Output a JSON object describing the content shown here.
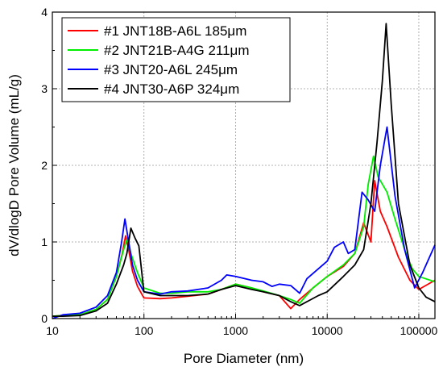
{
  "chart_data": {
    "type": "line",
    "xlabel": "Pore Diameter  (nm)",
    "ylabel": "dV/dlogD Pore Volume  (mL/g)",
    "xscale": "log",
    "xlim": [
      10,
      150000
    ],
    "ylim": [
      0,
      4
    ],
    "x_ticks": [
      {
        "value": 10,
        "label": "10"
      },
      {
        "value": 100,
        "label": "100"
      },
      {
        "value": 1000,
        "label": "1000"
      },
      {
        "value": 10000,
        "label": "10000"
      },
      {
        "value": 100000,
        "label": "100000"
      }
    ],
    "y_ticks": [
      {
        "value": 0,
        "label": "0"
      },
      {
        "value": 1,
        "label": "1"
      },
      {
        "value": 2,
        "label": "2"
      },
      {
        "value": 3,
        "label": "3"
      },
      {
        "value": 4,
        "label": "4"
      }
    ],
    "grid": "dotted",
    "legend_position": "top-left",
    "series": [
      {
        "name": "#1 JNT18B-A6L 185μm",
        "color": "#ff0000",
        "points": [
          [
            10,
            0.03
          ],
          [
            13,
            0.04
          ],
          [
            20,
            0.05
          ],
          [
            30,
            0.12
          ],
          [
            40,
            0.25
          ],
          [
            50,
            0.55
          ],
          [
            58,
            0.85
          ],
          [
            63,
            1.08
          ],
          [
            68,
            0.9
          ],
          [
            75,
            0.62
          ],
          [
            85,
            0.42
          ],
          [
            100,
            0.27
          ],
          [
            150,
            0.26
          ],
          [
            200,
            0.27
          ],
          [
            300,
            0.29
          ],
          [
            500,
            0.32
          ],
          [
            700,
            0.38
          ],
          [
            1000,
            0.45
          ],
          [
            1500,
            0.4
          ],
          [
            2000,
            0.35
          ],
          [
            3000,
            0.3
          ],
          [
            4000,
            0.13
          ],
          [
            5000,
            0.25
          ],
          [
            7000,
            0.4
          ],
          [
            10000,
            0.55
          ],
          [
            15000,
            0.68
          ],
          [
            20000,
            0.85
          ],
          [
            25000,
            1.25
          ],
          [
            30000,
            1.0
          ],
          [
            33000,
            1.8
          ],
          [
            38000,
            1.4
          ],
          [
            45000,
            1.2
          ],
          [
            60000,
            0.8
          ],
          [
            80000,
            0.5
          ],
          [
            100000,
            0.38
          ],
          [
            150000,
            0.5
          ]
        ]
      },
      {
        "name": "#2 JNT21B-A4G 211μm",
        "color": "#00ee00",
        "points": [
          [
            10,
            0.03
          ],
          [
            13,
            0.04
          ],
          [
            20,
            0.05
          ],
          [
            30,
            0.12
          ],
          [
            40,
            0.25
          ],
          [
            50,
            0.55
          ],
          [
            60,
            0.9
          ],
          [
            66,
            1.05
          ],
          [
            72,
            0.85
          ],
          [
            85,
            0.6
          ],
          [
            100,
            0.4
          ],
          [
            150,
            0.33
          ],
          [
            200,
            0.33
          ],
          [
            300,
            0.35
          ],
          [
            500,
            0.35
          ],
          [
            700,
            0.38
          ],
          [
            1000,
            0.45
          ],
          [
            1500,
            0.4
          ],
          [
            2000,
            0.36
          ],
          [
            3000,
            0.3
          ],
          [
            4000,
            0.25
          ],
          [
            5000,
            0.2
          ],
          [
            7000,
            0.4
          ],
          [
            10000,
            0.55
          ],
          [
            15000,
            0.7
          ],
          [
            20000,
            0.85
          ],
          [
            25000,
            1.2
          ],
          [
            28000,
            1.75
          ],
          [
            32000,
            2.12
          ],
          [
            36000,
            1.85
          ],
          [
            45000,
            1.65
          ],
          [
            55000,
            1.3
          ],
          [
            70000,
            0.9
          ],
          [
            85000,
            0.65
          ],
          [
            100000,
            0.55
          ],
          [
            150000,
            0.48
          ]
        ]
      },
      {
        "name": "#3 JNT20-A6L 245μm",
        "color": "#0000ff",
        "points": [
          [
            10,
            0.0
          ],
          [
            13,
            0.05
          ],
          [
            20,
            0.07
          ],
          [
            30,
            0.15
          ],
          [
            40,
            0.3
          ],
          [
            50,
            0.6
          ],
          [
            57,
            1.0
          ],
          [
            62,
            1.3
          ],
          [
            67,
            1.05
          ],
          [
            75,
            0.7
          ],
          [
            85,
            0.5
          ],
          [
            100,
            0.35
          ],
          [
            150,
            0.32
          ],
          [
            200,
            0.35
          ],
          [
            300,
            0.36
          ],
          [
            500,
            0.4
          ],
          [
            700,
            0.5
          ],
          [
            800,
            0.57
          ],
          [
            1000,
            0.55
          ],
          [
            1500,
            0.5
          ],
          [
            2000,
            0.48
          ],
          [
            2500,
            0.42
          ],
          [
            3000,
            0.45
          ],
          [
            4000,
            0.43
          ],
          [
            5000,
            0.33
          ],
          [
            6000,
            0.52
          ],
          [
            8000,
            0.65
          ],
          [
            10000,
            0.75
          ],
          [
            12000,
            0.93
          ],
          [
            15000,
            1.0
          ],
          [
            17000,
            0.85
          ],
          [
            20000,
            0.9
          ],
          [
            24000,
            1.65
          ],
          [
            28000,
            1.55
          ],
          [
            33000,
            1.4
          ],
          [
            38000,
            2.0
          ],
          [
            45000,
            2.5
          ],
          [
            55000,
            1.6
          ],
          [
            70000,
            0.9
          ],
          [
            90000,
            0.4
          ],
          [
            110000,
            0.6
          ],
          [
            150000,
            0.96
          ]
        ]
      },
      {
        "name": "#4 JNT30-A6P 324μm",
        "color": "#000000",
        "points": [
          [
            10,
            0.03
          ],
          [
            13,
            0.03
          ],
          [
            20,
            0.04
          ],
          [
            30,
            0.1
          ],
          [
            40,
            0.2
          ],
          [
            50,
            0.45
          ],
          [
            60,
            0.7
          ],
          [
            65,
            0.85
          ],
          [
            72,
            1.18
          ],
          [
            80,
            1.05
          ],
          [
            88,
            0.95
          ],
          [
            100,
            0.35
          ],
          [
            150,
            0.3
          ],
          [
            200,
            0.3
          ],
          [
            300,
            0.3
          ],
          [
            500,
            0.32
          ],
          [
            700,
            0.38
          ],
          [
            1000,
            0.43
          ],
          [
            1500,
            0.38
          ],
          [
            2000,
            0.35
          ],
          [
            3000,
            0.3
          ],
          [
            4000,
            0.22
          ],
          [
            5000,
            0.17
          ],
          [
            6000,
            0.22
          ],
          [
            8000,
            0.3
          ],
          [
            10000,
            0.35
          ],
          [
            15000,
            0.55
          ],
          [
            20000,
            0.7
          ],
          [
            25000,
            0.9
          ],
          [
            30000,
            1.5
          ],
          [
            35000,
            2.3
          ],
          [
            40000,
            3.1
          ],
          [
            44000,
            3.85
          ],
          [
            50000,
            2.8
          ],
          [
            60000,
            1.5
          ],
          [
            80000,
            0.7
          ],
          [
            100000,
            0.4
          ],
          [
            120000,
            0.28
          ],
          [
            150000,
            0.22
          ]
        ]
      }
    ]
  }
}
